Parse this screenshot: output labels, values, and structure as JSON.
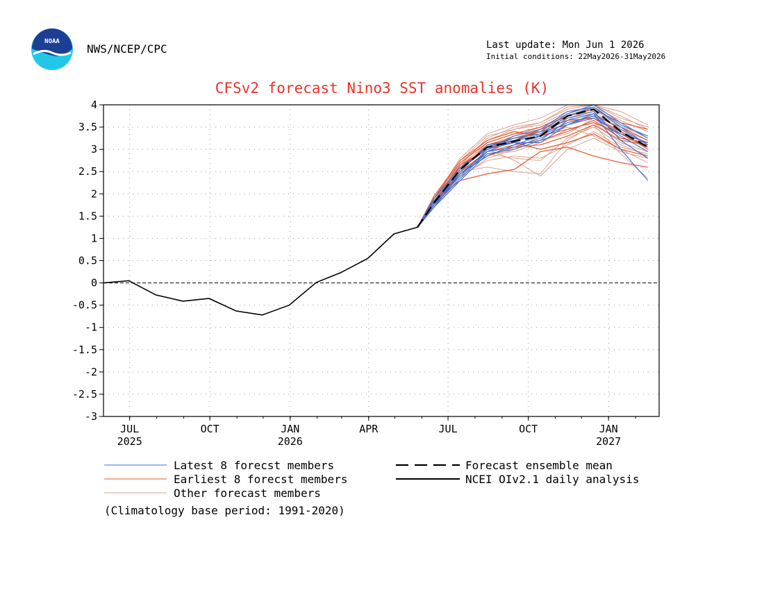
{
  "header": {
    "logo_text": "NOAA",
    "agency": "NWS/NCEP/CPC",
    "last_update": "Last update: Mon Jun  1 2026",
    "initial_conditions": "Initial conditions: 22May2026-31May2026"
  },
  "footer": {
    "climatology_note": "(Climatology base period: 1991-2020)"
  },
  "colors": {
    "title": "#e8332a",
    "latest": "#3a6fd8",
    "earliest": "#e8532a",
    "other": "#d9a08c",
    "mean": "#000000",
    "analysis": "#000000"
  },
  "chart_data": {
    "type": "line",
    "title": "CFSv2 forecast Nino3 SST anomalies (K)",
    "ylim": [
      -3,
      4
    ],
    "yticks": [
      -3,
      -2.5,
      -2,
      -1.5,
      -1,
      -0.5,
      0,
      0.5,
      1,
      1.5,
      2,
      2.5,
      3,
      3.5,
      4
    ],
    "ytick_labels": [
      "-3",
      "-2.5",
      "-2",
      "-1.5",
      "-1",
      "-0.5",
      "0",
      "0.5",
      "1",
      "1.5",
      "2",
      "2.5",
      "3",
      "3.5",
      "4"
    ],
    "xlim": [
      "2025-06-01",
      "2027-02-28"
    ],
    "xticks": [
      {
        "date": "2025-07-01",
        "label": "JUL",
        "year": "2025"
      },
      {
        "date": "2025-10-01",
        "label": "OCT",
        "year": ""
      },
      {
        "date": "2026-01-01",
        "label": "JAN",
        "year": "2026"
      },
      {
        "date": "2026-04-01",
        "label": "APR",
        "year": ""
      },
      {
        "date": "2026-07-01",
        "label": "JUL",
        "year": ""
      },
      {
        "date": "2026-10-01",
        "label": "OCT",
        "year": ""
      },
      {
        "date": "2027-01-01",
        "label": "JAN",
        "year": "2027"
      }
    ],
    "grid": true,
    "zero_line": true,
    "legend": [
      {
        "label": "Latest 8 forecst members",
        "style": "latest"
      },
      {
        "label": "Earliest 8 forecst members",
        "style": "earliest"
      },
      {
        "label": "Other forecast members",
        "style": "other"
      },
      {
        "label": "Forecast ensemble mean",
        "style": "mean"
      },
      {
        "label": "NCEI OIv2.1 daily analysis",
        "style": "analysis"
      }
    ],
    "forecast_dates": [
      "2026-05-27",
      "2026-06-15",
      "2026-07-15",
      "2026-08-15",
      "2026-09-15",
      "2026-10-15",
      "2026-11-15",
      "2026-12-15",
      "2027-01-15",
      "2027-02-15"
    ],
    "series": [
      {
        "name": "NCEI OIv2.1 daily analysis",
        "style": "analysis",
        "x": [
          "2025-06-01",
          "2025-06-30",
          "2025-07-31",
          "2025-08-31",
          "2025-09-30",
          "2025-10-31",
          "2025-11-30",
          "2025-12-31",
          "2026-01-31",
          "2026-02-28",
          "2026-03-31",
          "2026-04-30",
          "2026-05-27"
        ],
        "y": [
          0.0,
          0.05,
          -0.27,
          -0.41,
          -0.35,
          -0.63,
          -0.72,
          -0.5,
          0.01,
          0.23,
          0.55,
          1.1,
          1.25
        ]
      },
      {
        "name": "Forecast ensemble mean",
        "style": "mean",
        "y": [
          1.25,
          1.8,
          2.55,
          3.05,
          3.18,
          3.3,
          3.75,
          3.9,
          3.4,
          3.05
        ]
      }
    ],
    "members": {
      "latest": [
        [
          1.25,
          1.75,
          2.35,
          2.95,
          3.2,
          3.3,
          3.6,
          3.75,
          3.3,
          2.95
        ],
        [
          1.25,
          1.8,
          2.45,
          2.95,
          3.05,
          3.25,
          3.55,
          3.8,
          3.45,
          3.1
        ],
        [
          1.25,
          1.85,
          2.55,
          3.05,
          3.25,
          3.35,
          3.75,
          3.95,
          3.55,
          3.3
        ],
        [
          1.25,
          1.7,
          2.3,
          2.9,
          3.0,
          3.2,
          3.65,
          3.8,
          3.0,
          2.3
        ],
        [
          1.25,
          1.75,
          2.5,
          3.1,
          3.2,
          3.4,
          3.8,
          4.0,
          3.6,
          3.25
        ],
        [
          1.25,
          1.8,
          2.4,
          3.0,
          3.15,
          3.15,
          3.55,
          3.7,
          3.35,
          3.15
        ],
        [
          1.25,
          1.9,
          2.6,
          3.0,
          3.3,
          3.45,
          3.85,
          3.95,
          3.5,
          3.1
        ],
        [
          1.25,
          1.7,
          2.45,
          2.85,
          3.1,
          3.3,
          3.7,
          3.85,
          3.2,
          2.8
        ]
      ],
      "earliest": [
        [
          1.25,
          1.85,
          2.3,
          2.45,
          2.55,
          2.95,
          3.05,
          2.85,
          2.7,
          2.6
        ],
        [
          1.25,
          1.9,
          2.7,
          3.15,
          3.35,
          3.5,
          3.75,
          3.9,
          3.6,
          3.45
        ],
        [
          1.25,
          1.8,
          2.55,
          3.1,
          3.25,
          3.4,
          3.55,
          3.75,
          3.5,
          3.2
        ],
        [
          1.25,
          1.95,
          2.75,
          3.2,
          3.4,
          3.3,
          3.45,
          3.6,
          3.35,
          3.05
        ],
        [
          1.25,
          1.85,
          2.45,
          2.85,
          3.05,
          3.1,
          3.3,
          3.55,
          3.2,
          3.1
        ],
        [
          1.25,
          1.9,
          2.6,
          3.05,
          3.15,
          3.0,
          3.15,
          3.35,
          3.0,
          2.85
        ],
        [
          1.25,
          1.8,
          2.65,
          3.0,
          3.2,
          3.45,
          3.65,
          3.7,
          3.4,
          3.0
        ],
        [
          1.25,
          1.75,
          2.5,
          2.95,
          3.1,
          3.2,
          3.4,
          3.65,
          3.25,
          3.15
        ]
      ],
      "other": [
        [
          1.25,
          1.8,
          2.65,
          3.25,
          3.5,
          3.6,
          3.9,
          4.0,
          3.7,
          3.5
        ],
        [
          1.25,
          1.75,
          2.4,
          2.75,
          2.85,
          2.8,
          3.1,
          3.4,
          3.05,
          2.9
        ],
        [
          1.25,
          1.85,
          2.5,
          2.6,
          2.5,
          2.45,
          3.2,
          3.55,
          2.9,
          2.35
        ],
        [
          1.25,
          1.9,
          2.8,
          3.35,
          3.55,
          3.7,
          4.0,
          4.0,
          3.85,
          3.55
        ],
        [
          1.25,
          1.7,
          2.35,
          2.8,
          3.0,
          3.3,
          3.5,
          3.3,
          3.0,
          2.7
        ],
        [
          1.25,
          1.8,
          2.55,
          3.05,
          3.25,
          3.45,
          3.75,
          3.85,
          3.45,
          3.2
        ],
        [
          1.25,
          1.85,
          2.6,
          3.15,
          3.35,
          3.4,
          3.65,
          3.95,
          3.65,
          3.4
        ],
        [
          1.25,
          1.75,
          2.45,
          2.9,
          2.95,
          3.15,
          3.45,
          3.6,
          3.15,
          2.95
        ],
        [
          1.25,
          1.8,
          2.7,
          3.2,
          3.45,
          3.55,
          3.85,
          3.9,
          3.5,
          3.3
        ],
        [
          1.25,
          1.9,
          2.5,
          2.85,
          3.1,
          3.2,
          3.35,
          3.7,
          3.25,
          3.05
        ],
        [
          1.25,
          1.7,
          2.55,
          3.0,
          2.75,
          2.4,
          3.0,
          3.25,
          2.95,
          2.8
        ],
        [
          1.25,
          1.85,
          2.65,
          3.1,
          3.3,
          3.5,
          3.8,
          3.95,
          3.55,
          3.25
        ],
        [
          1.25,
          1.8,
          2.4,
          2.95,
          3.2,
          3.35,
          3.6,
          3.75,
          3.4,
          3.15
        ],
        [
          1.25,
          1.75,
          2.6,
          3.05,
          3.3,
          3.45,
          3.7,
          3.8,
          3.35,
          3.0
        ],
        [
          1.25,
          1.9,
          2.75,
          3.3,
          3.45,
          3.6,
          3.95,
          4.0,
          3.75,
          3.45
        ],
        [
          1.25,
          1.8,
          2.5,
          2.9,
          2.8,
          2.75,
          3.25,
          3.5,
          3.1,
          2.85
        ]
      ]
    }
  }
}
